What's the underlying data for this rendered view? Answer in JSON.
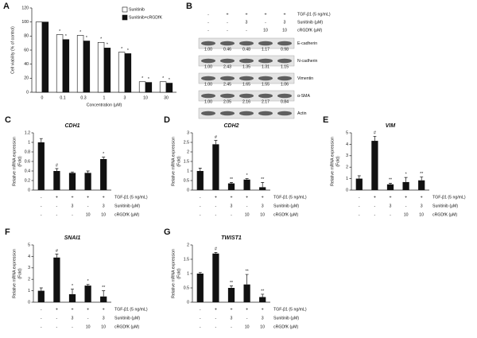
{
  "chart_data": [
    {
      "type": "bar",
      "panel": "A",
      "ylabel": "Cell viability (% of control)",
      "xlabel": "Concentration (μM)",
      "categories": [
        "0",
        "0.1",
        "0.3",
        "1",
        "3",
        "10",
        "30"
      ],
      "series": [
        {
          "name": "Sunitinib",
          "color": "#ffffff",
          "values": [
            100,
            82,
            81,
            71,
            57,
            15,
            15
          ],
          "annotations": [
            null,
            "*",
            "*",
            "*",
            "*",
            "*",
            "*"
          ]
        },
        {
          "name": "Sunitinib+cRGDfK",
          "color": "#111111",
          "values": [
            100,
            75,
            73,
            63,
            55,
            14,
            13
          ],
          "annotations": [
            null,
            "*",
            "*",
            "*",
            "*",
            "*",
            "*"
          ]
        }
      ],
      "ylim": [
        0,
        120
      ],
      "yticks": [
        0,
        20,
        40,
        60,
        80,
        100,
        120
      ],
      "legend": "top-right"
    },
    {
      "type": "bar",
      "panel": "C",
      "title": "CDH1",
      "ylabel": [
        "Relative mRNA expression",
        "(Fold)"
      ],
      "color": "#111111",
      "values": [
        1.0,
        0.4,
        0.36,
        0.36,
        0.65
      ],
      "errors": [
        0.08,
        0.05,
        0.02,
        0.04,
        0.04
      ],
      "annotations": [
        null,
        "#",
        null,
        null,
        "*"
      ],
      "ylim": [
        0,
        1.2
      ],
      "yticks": [
        0,
        0.2,
        0.4,
        0.6,
        0.8,
        1,
        1.2
      ],
      "conditions": [
        {
          "label": "TGF-β1 (5 ng/mL)",
          "values": [
            "-",
            "+",
            "+",
            "+",
            "+"
          ]
        },
        {
          "label": "Sunitinib (μM)",
          "values": [
            "-",
            "-",
            "3",
            "-",
            "3"
          ]
        },
        {
          "label": "cRGDfK (μM)",
          "values": [
            "-",
            "-",
            "-",
            "10",
            "10"
          ]
        }
      ]
    },
    {
      "type": "bar",
      "panel": "D",
      "title": "CDH2",
      "ylabel": [
        "Relative mRNA expression",
        "(Fold)"
      ],
      "color": "#111111",
      "values": [
        1.0,
        2.4,
        0.35,
        0.55,
        0.15
      ],
      "errors": [
        0.15,
        0.2,
        0.05,
        0.05,
        0.25
      ],
      "annotations": [
        null,
        "#",
        "**",
        "*",
        "**"
      ],
      "ylim": [
        0,
        3
      ],
      "yticks": [
        0,
        0.5,
        1,
        1.5,
        2,
        2.5,
        3
      ],
      "conditions": [
        {
          "label": "TGF-β1 (5 ng/mL)",
          "values": [
            "-",
            "+",
            "+",
            "+",
            "+"
          ]
        },
        {
          "label": "Sunitinib (μM)",
          "values": [
            "-",
            "-",
            "3",
            "-",
            "3"
          ]
        },
        {
          "label": "cRGDfK (μM)",
          "values": [
            "-",
            "-",
            "-",
            "10",
            "10"
          ]
        }
      ]
    },
    {
      "type": "bar",
      "panel": "E",
      "title": "VIM",
      "ylabel": [
        "Relative mRNA expression",
        "(Fold)"
      ],
      "color": "#111111",
      "values": [
        1.0,
        4.3,
        0.5,
        0.7,
        0.85
      ],
      "errors": [
        0.25,
        0.4,
        0.1,
        0.4,
        0.3
      ],
      "annotations": [
        null,
        "#",
        "**",
        "*",
        "**"
      ],
      "ylim": [
        0,
        5
      ],
      "yticks": [
        0,
        1,
        2,
        3,
        4,
        5
      ],
      "conditions": [
        {
          "label": "TGF-β1 (5 ng/mL)",
          "values": [
            "-",
            "+",
            "+",
            "+",
            "+"
          ]
        },
        {
          "label": "Sunitinib (μM)",
          "values": [
            "-",
            "-",
            "3",
            "-",
            "3"
          ]
        },
        {
          "label": "cRGDfK (μM)",
          "values": [
            "-",
            "-",
            "-",
            "10",
            "10"
          ]
        }
      ]
    },
    {
      "type": "bar",
      "panel": "F",
      "title": "SNAI1",
      "ylabel": [
        "Relative mRNA expression",
        "(Fold)"
      ],
      "color": "#111111",
      "values": [
        1.0,
        3.9,
        0.7,
        1.45,
        0.5
      ],
      "errors": [
        0.25,
        0.3,
        0.45,
        0.1,
        0.5
      ],
      "annotations": [
        null,
        "#",
        "*",
        "*",
        "**"
      ],
      "ylim": [
        0,
        5
      ],
      "yticks": [
        0,
        1,
        2,
        3,
        4,
        5
      ],
      "conditions": [
        {
          "label": "TGF-β1 (5 ng/mL)",
          "values": [
            "-",
            "+",
            "+",
            "+",
            "+"
          ]
        },
        {
          "label": "Sunitinib (μM)",
          "values": [
            "-",
            "-",
            "3",
            "-",
            "3"
          ]
        },
        {
          "label": "cRGDfK (μM)",
          "values": [
            "-",
            "-",
            "-",
            "10",
            "10"
          ]
        }
      ]
    },
    {
      "type": "bar",
      "panel": "G",
      "title": "TWIST1",
      "ylabel": [
        "Relative mRNA expression",
        "(Fold)"
      ],
      "color": "#111111",
      "values": [
        1.0,
        1.7,
        0.5,
        0.62,
        0.18
      ],
      "errors": [
        0.04,
        0.04,
        0.07,
        0.35,
        0.1
      ],
      "annotations": [
        null,
        "#",
        "**",
        "**",
        "**"
      ],
      "ylim": [
        0,
        2
      ],
      "yticks": [
        0,
        0.5,
        1,
        1.5,
        2
      ],
      "conditions": [
        {
          "label": "TGF-β1 (5 ng/mL)",
          "values": [
            "-",
            "+",
            "+",
            "+",
            "+"
          ]
        },
        {
          "label": "Sunitinib (μM)",
          "values": [
            "-",
            "-",
            "3",
            "-",
            "3"
          ]
        },
        {
          "label": "cRGDfK (μM)",
          "values": [
            "-",
            "-",
            "-",
            "10",
            "10"
          ]
        }
      ]
    }
  ],
  "blot": {
    "panel": "B",
    "conditions": [
      {
        "label": "TGF-β1 (5 ng/mL)",
        "values": [
          "-",
          "+",
          "+",
          "+",
          "+"
        ]
      },
      {
        "label": "Sunitinib (μM)",
        "values": [
          "-",
          "-",
          "3",
          "-",
          "3"
        ]
      },
      {
        "label": "cRGDfK (μM)",
        "values": [
          "-",
          "-",
          "-",
          "10",
          "10"
        ]
      }
    ],
    "bands": [
      {
        "name": "E-cadherin",
        "quant": [
          "1.00",
          "0.46",
          "0.48",
          "1.17",
          "0.98"
        ]
      },
      {
        "name": "N-cadherin",
        "quant": [
          "1.00",
          "2.43",
          "1.35",
          "1.31",
          "1.15"
        ]
      },
      {
        "name": "Vimentin",
        "quant": [
          "1.00",
          "2.45",
          "1.65",
          "1.55",
          "1.06"
        ]
      },
      {
        "name": "α-SMA",
        "quant": [
          "1.00",
          "2.05",
          "2.16",
          "2.17",
          "0.84"
        ]
      },
      {
        "name": "Actin"
      }
    ]
  }
}
